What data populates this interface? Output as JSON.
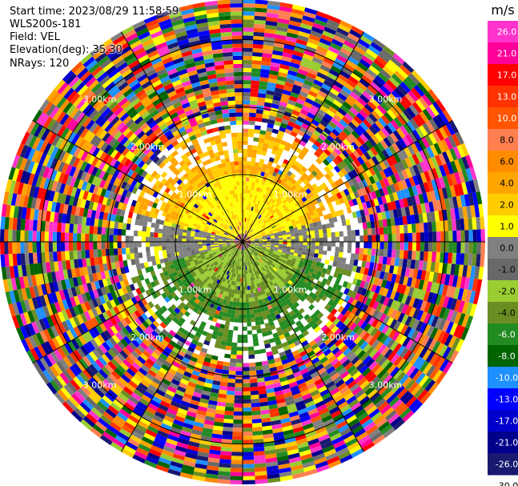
{
  "info": {
    "start_time": "Start time: 2023/08/29 11:58:59",
    "instrument": "WLS200s-181",
    "field": "Field: VEL",
    "elevation": "Elevation(deg): 35.30",
    "nrays": "NRays: 120"
  },
  "chart_data": {
    "type": "ppi",
    "field": "VEL",
    "rays": 120,
    "range_rings_km": [
      1.0,
      2.0,
      3.0
    ],
    "range_ring_labels": [
      "1.00km",
      "2.00km",
      "3.00km"
    ],
    "max_range_km": 3.6,
    "colorbar": {
      "unit": "m/s",
      "ticks": [
        "26.0",
        "21.0",
        "17.0",
        "13.0",
        "10.0",
        "8.0",
        "6.0",
        "4.0",
        "2.0",
        "1.0",
        "0.0",
        "-1.0",
        "-2.0",
        "-4.0",
        "-6.0",
        "-8.0",
        "-10.0",
        "-13.0",
        "-17.0",
        "-21.0",
        "-26.0",
        "-30.0"
      ],
      "colors": [
        "#ff33cc",
        "#ff0099",
        "#ff0000",
        "#ff3300",
        "#ff5500",
        "#ff7f50",
        "#ff8c00",
        "#ffa500",
        "#ffcc00",
        "#ffff00",
        "#808080",
        "#696969",
        "#9acd32",
        "#6b8e23",
        "#228b22",
        "#006400",
        "#1e90ff",
        "#0000ff",
        "#0000cd",
        "#00008b",
        "#191970"
      ]
    }
  }
}
